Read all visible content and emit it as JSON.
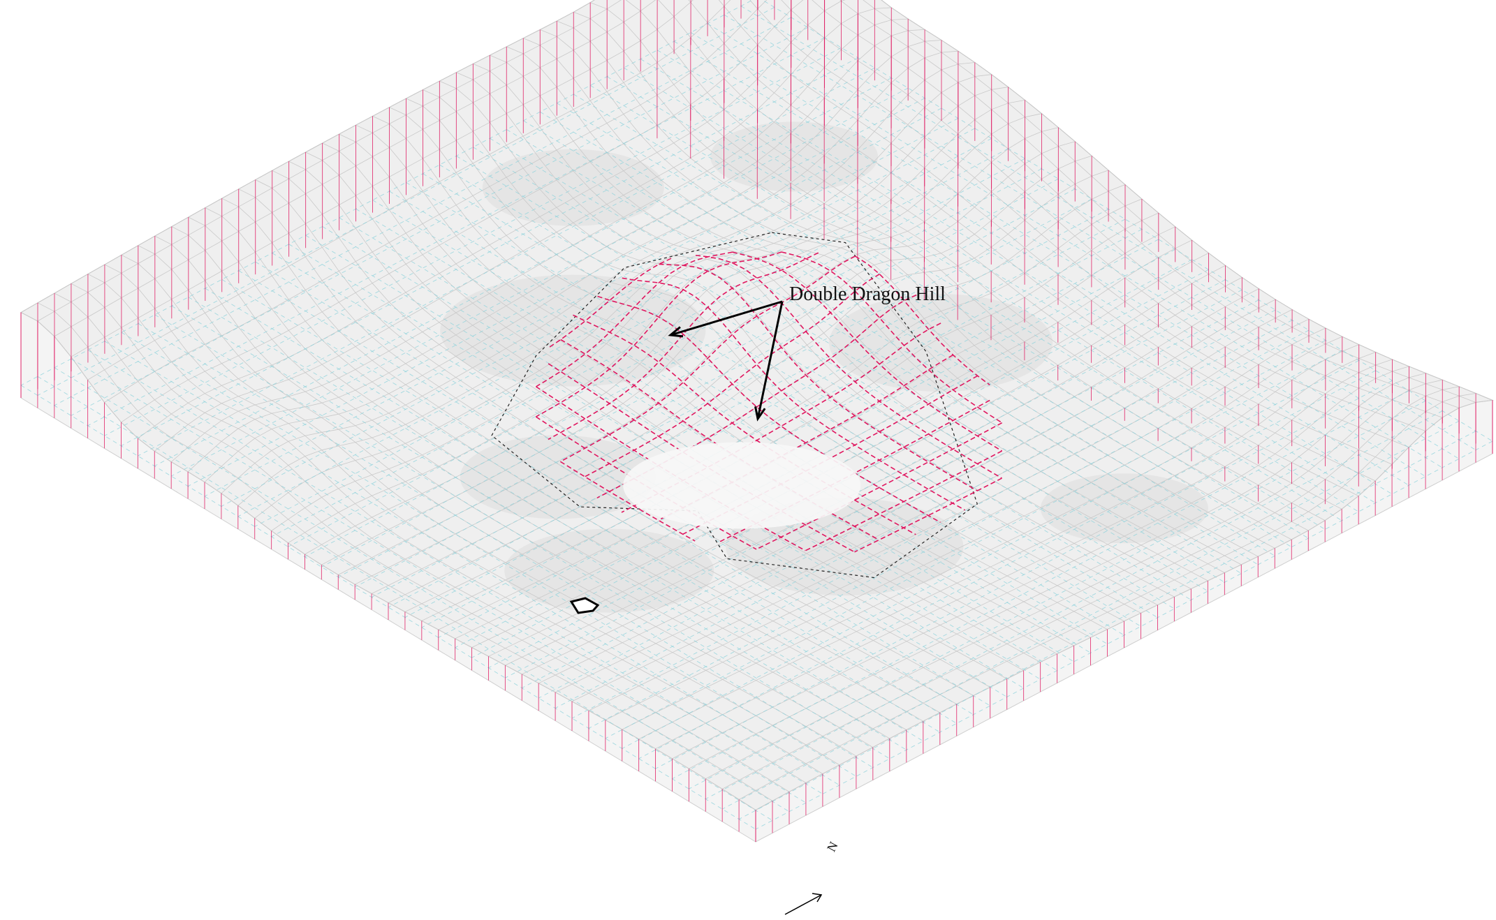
{
  "annotation": {
    "label": "Double Dragon Hill",
    "pointer_count": 2
  },
  "north_arrow": {
    "letter": "N"
  },
  "colors": {
    "surface_grid": "#c9c9c9",
    "terrain_fill": "#efefef",
    "hidden_grid": "#8fd3dc",
    "hill_grid": "#e0165f",
    "boundary": "#222222",
    "label": "#111111"
  }
}
